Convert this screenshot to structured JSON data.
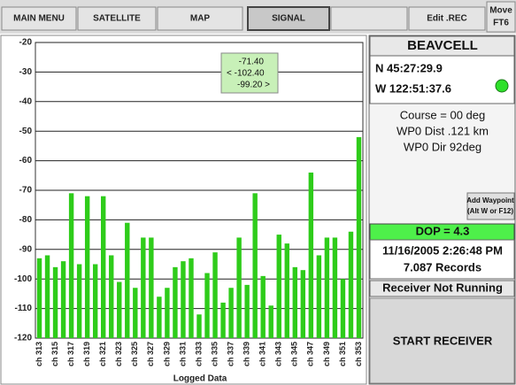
{
  "tabs": [
    "MAIN MENU",
    "SATELLITE",
    "MAP",
    "SIGNAL",
    "Edit .REC",
    "Move",
    "FT6"
  ],
  "chart_data": {
    "type": "bar",
    "xlabel": "Logged Data",
    "color": "#2ecc1a",
    "categories": [
      "ch 313",
      null,
      "ch 315",
      null,
      "ch 317",
      null,
      "ch 319",
      null,
      "ch 321",
      null,
      "ch 323",
      null,
      "ch 325",
      null,
      "ch 327",
      null,
      "ch 329",
      null,
      "ch 331",
      null,
      "ch 333",
      null,
      "ch 335",
      null,
      "ch 337",
      null,
      "ch 339",
      null,
      "ch 341",
      null,
      "ch 343",
      null,
      "ch 345",
      null,
      "ch 347",
      null,
      "ch 349",
      null,
      "ch 351",
      null,
      "ch 353"
    ],
    "values": [
      -93,
      -92,
      -96,
      -94,
      -71,
      -95,
      -72,
      -95,
      -72,
      -92,
      -101,
      -81,
      -103,
      -86,
      -86,
      -106,
      -103,
      -96,
      -94,
      -93,
      -112,
      -98,
      -91,
      -108,
      -103,
      -86,
      -102,
      -71,
      -99,
      -109,
      -85,
      -88,
      -96,
      -97,
      -64,
      -92,
      -86,
      -86,
      -100,
      -84,
      -52
    ],
    "ylim": [
      -120,
      -20
    ],
    "yticks": [
      -120,
      -110,
      -100,
      -90,
      -80,
      -70,
      -60,
      -50,
      -40,
      -30,
      -20
    ],
    "grid": true,
    "annotations": [
      "-71.40",
      "< -102.40",
      "-99.20 >"
    ]
  },
  "panel": {
    "name": "BEAVCELL",
    "lat": "N 45:27:29.9",
    "lon": "W 122:51:37.6",
    "course": "Course = 00 deg",
    "dist": "WP0 Dist  .121 km",
    "dir": "WP0 Dir  92deg",
    "button": [
      "Add Waypoint",
      "(Alt W or F12)"
    ],
    "dop": "DOP =  4.3",
    "time": "11/16/2005 2:26:48 PM",
    "records": "7.087 Records",
    "status": "Receiver Not Running",
    "start": "START RECEIVER"
  }
}
